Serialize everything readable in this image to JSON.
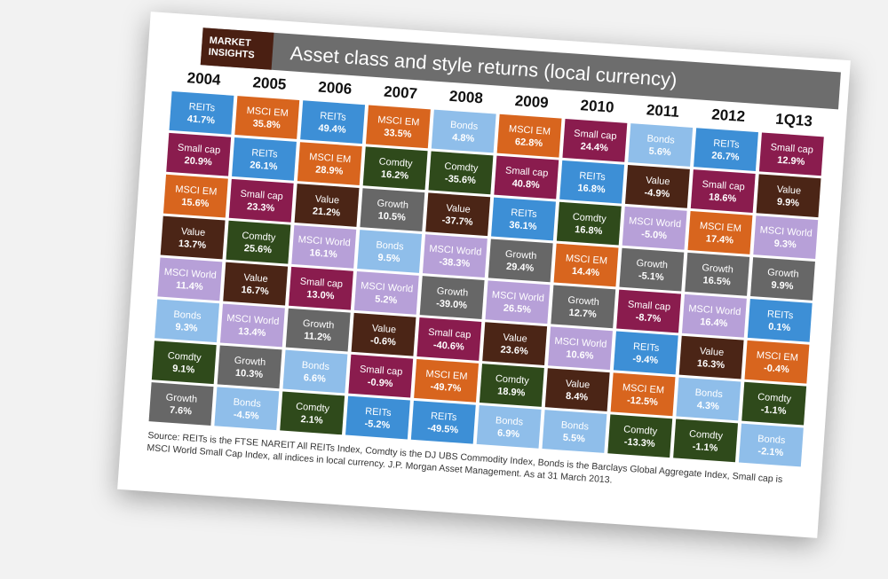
{
  "header": {
    "badge": "MARKET INSIGHTS",
    "title": "Asset class and style returns (local currency)"
  },
  "colors": {
    "REITs": "#3d8fd6",
    "MSCI EM": "#d8651e",
    "Small cap": "#8a1c4e",
    "Value": "#4b2516",
    "MSCI World": "#b7a0d8",
    "Bonds": "#8fbeea",
    "Comdty": "#2f4a1b",
    "Growth": "#676767"
  },
  "columns": [
    {
      "year": "2004",
      "cells": [
        {
          "label": "REITs",
          "value": "41.7%"
        },
        {
          "label": "Small cap",
          "value": "20.9%"
        },
        {
          "label": "MSCI EM",
          "value": "15.6%"
        },
        {
          "label": "Value",
          "value": "13.7%"
        },
        {
          "label": "MSCI World",
          "value": "11.4%"
        },
        {
          "label": "Bonds",
          "value": "9.3%"
        },
        {
          "label": "Comdty",
          "value": "9.1%"
        },
        {
          "label": "Growth",
          "value": "7.6%"
        }
      ]
    },
    {
      "year": "2005",
      "cells": [
        {
          "label": "MSCI EM",
          "value": "35.8%"
        },
        {
          "label": "REITs",
          "value": "26.1%"
        },
        {
          "label": "Small cap",
          "value": "23.3%"
        },
        {
          "label": "Comdty",
          "value": "25.6%"
        },
        {
          "label": "Value",
          "value": "16.7%"
        },
        {
          "label": "MSCI World",
          "value": "13.4%"
        },
        {
          "label": "Growth",
          "value": "10.3%"
        },
        {
          "label": "Bonds",
          "value": "-4.5%"
        }
      ]
    },
    {
      "year": "2006",
      "cells": [
        {
          "label": "REITs",
          "value": "49.4%"
        },
        {
          "label": "MSCI EM",
          "value": "28.9%"
        },
        {
          "label": "Value",
          "value": "21.2%"
        },
        {
          "label": "MSCI World",
          "value": "16.1%"
        },
        {
          "label": "Small cap",
          "value": "13.0%"
        },
        {
          "label": "Growth",
          "value": "11.2%"
        },
        {
          "label": "Bonds",
          "value": "6.6%"
        },
        {
          "label": "Comdty",
          "value": "2.1%"
        }
      ]
    },
    {
      "year": "2007",
      "cells": [
        {
          "label": "MSCI EM",
          "value": "33.5%"
        },
        {
          "label": "Comdty",
          "value": "16.2%"
        },
        {
          "label": "Growth",
          "value": "10.5%"
        },
        {
          "label": "Bonds",
          "value": "9.5%"
        },
        {
          "label": "MSCI World",
          "value": "5.2%"
        },
        {
          "label": "Value",
          "value": "-0.6%"
        },
        {
          "label": "Small cap",
          "value": "-0.9%"
        },
        {
          "label": "REITs",
          "value": "-5.2%"
        }
      ]
    },
    {
      "year": "2008",
      "cells": [
        {
          "label": "Bonds",
          "value": "4.8%"
        },
        {
          "label": "Comdty",
          "value": "-35.6%"
        },
        {
          "label": "Value",
          "value": "-37.7%"
        },
        {
          "label": "MSCI World",
          "value": "-38.3%"
        },
        {
          "label": "Growth",
          "value": "-39.0%"
        },
        {
          "label": "Small cap",
          "value": "-40.6%"
        },
        {
          "label": "MSCI EM",
          "value": "-49.7%"
        },
        {
          "label": "REITs",
          "value": "-49.5%"
        }
      ]
    },
    {
      "year": "2009",
      "cells": [
        {
          "label": "MSCI EM",
          "value": "62.8%"
        },
        {
          "label": "Small cap",
          "value": "40.8%"
        },
        {
          "label": "REITs",
          "value": "36.1%"
        },
        {
          "label": "Growth",
          "value": "29.4%"
        },
        {
          "label": "MSCI World",
          "value": "26.5%"
        },
        {
          "label": "Value",
          "value": "23.6%"
        },
        {
          "label": "Comdty",
          "value": "18.9%"
        },
        {
          "label": "Bonds",
          "value": "6.9%"
        }
      ]
    },
    {
      "year": "2010",
      "cells": [
        {
          "label": "Small cap",
          "value": "24.4%"
        },
        {
          "label": "REITs",
          "value": "16.8%"
        },
        {
          "label": "Comdty",
          "value": "16.8%"
        },
        {
          "label": "MSCI EM",
          "value": "14.4%"
        },
        {
          "label": "Growth",
          "value": "12.7%"
        },
        {
          "label": "MSCI World",
          "value": "10.6%"
        },
        {
          "label": "Value",
          "value": "8.4%"
        },
        {
          "label": "Bonds",
          "value": "5.5%"
        }
      ]
    },
    {
      "year": "2011",
      "cells": [
        {
          "label": "Bonds",
          "value": "5.6%"
        },
        {
          "label": "Value",
          "value": "-4.9%"
        },
        {
          "label": "MSCI World",
          "value": "-5.0%"
        },
        {
          "label": "Growth",
          "value": "-5.1%"
        },
        {
          "label": "Small cap",
          "value": "-8.7%"
        },
        {
          "label": "REITs",
          "value": "-9.4%"
        },
        {
          "label": "MSCI EM",
          "value": "-12.5%"
        },
        {
          "label": "Comdty",
          "value": "-13.3%"
        }
      ]
    },
    {
      "year": "2012",
      "cells": [
        {
          "label": "REITs",
          "value": "26.7%"
        },
        {
          "label": "Small cap",
          "value": "18.6%"
        },
        {
          "label": "MSCI EM",
          "value": "17.4%"
        },
        {
          "label": "Growth",
          "value": "16.5%"
        },
        {
          "label": "MSCI World",
          "value": "16.4%"
        },
        {
          "label": "Value",
          "value": "16.3%"
        },
        {
          "label": "Bonds",
          "value": "4.3%"
        },
        {
          "label": "Comdty",
          "value": "-1.1%"
        }
      ]
    },
    {
      "year": "1Q13",
      "cells": [
        {
          "label": "Small cap",
          "value": "12.9%"
        },
        {
          "label": "Value",
          "value": "9.9%"
        },
        {
          "label": "MSCI World",
          "value": "9.3%"
        },
        {
          "label": "Growth",
          "value": "9.9%"
        },
        {
          "label": "REITs",
          "value": "0.1%"
        },
        {
          "label": "MSCI EM",
          "value": "-0.4%"
        },
        {
          "label": "Comdty",
          "value": "-1.1%"
        },
        {
          "label": "Bonds",
          "value": "-2.1%"
        }
      ]
    }
  ],
  "footnote": "Source: REITs is the FTSE NAREIT All REITs Index, Comdty is the DJ UBS Commodity Index, Bonds is the Barclays Global Aggregate Index, Small cap is MSCI World Small Cap Index, all indices in local currency. J.P. Morgan Asset Management. As at 31 March 2013."
}
